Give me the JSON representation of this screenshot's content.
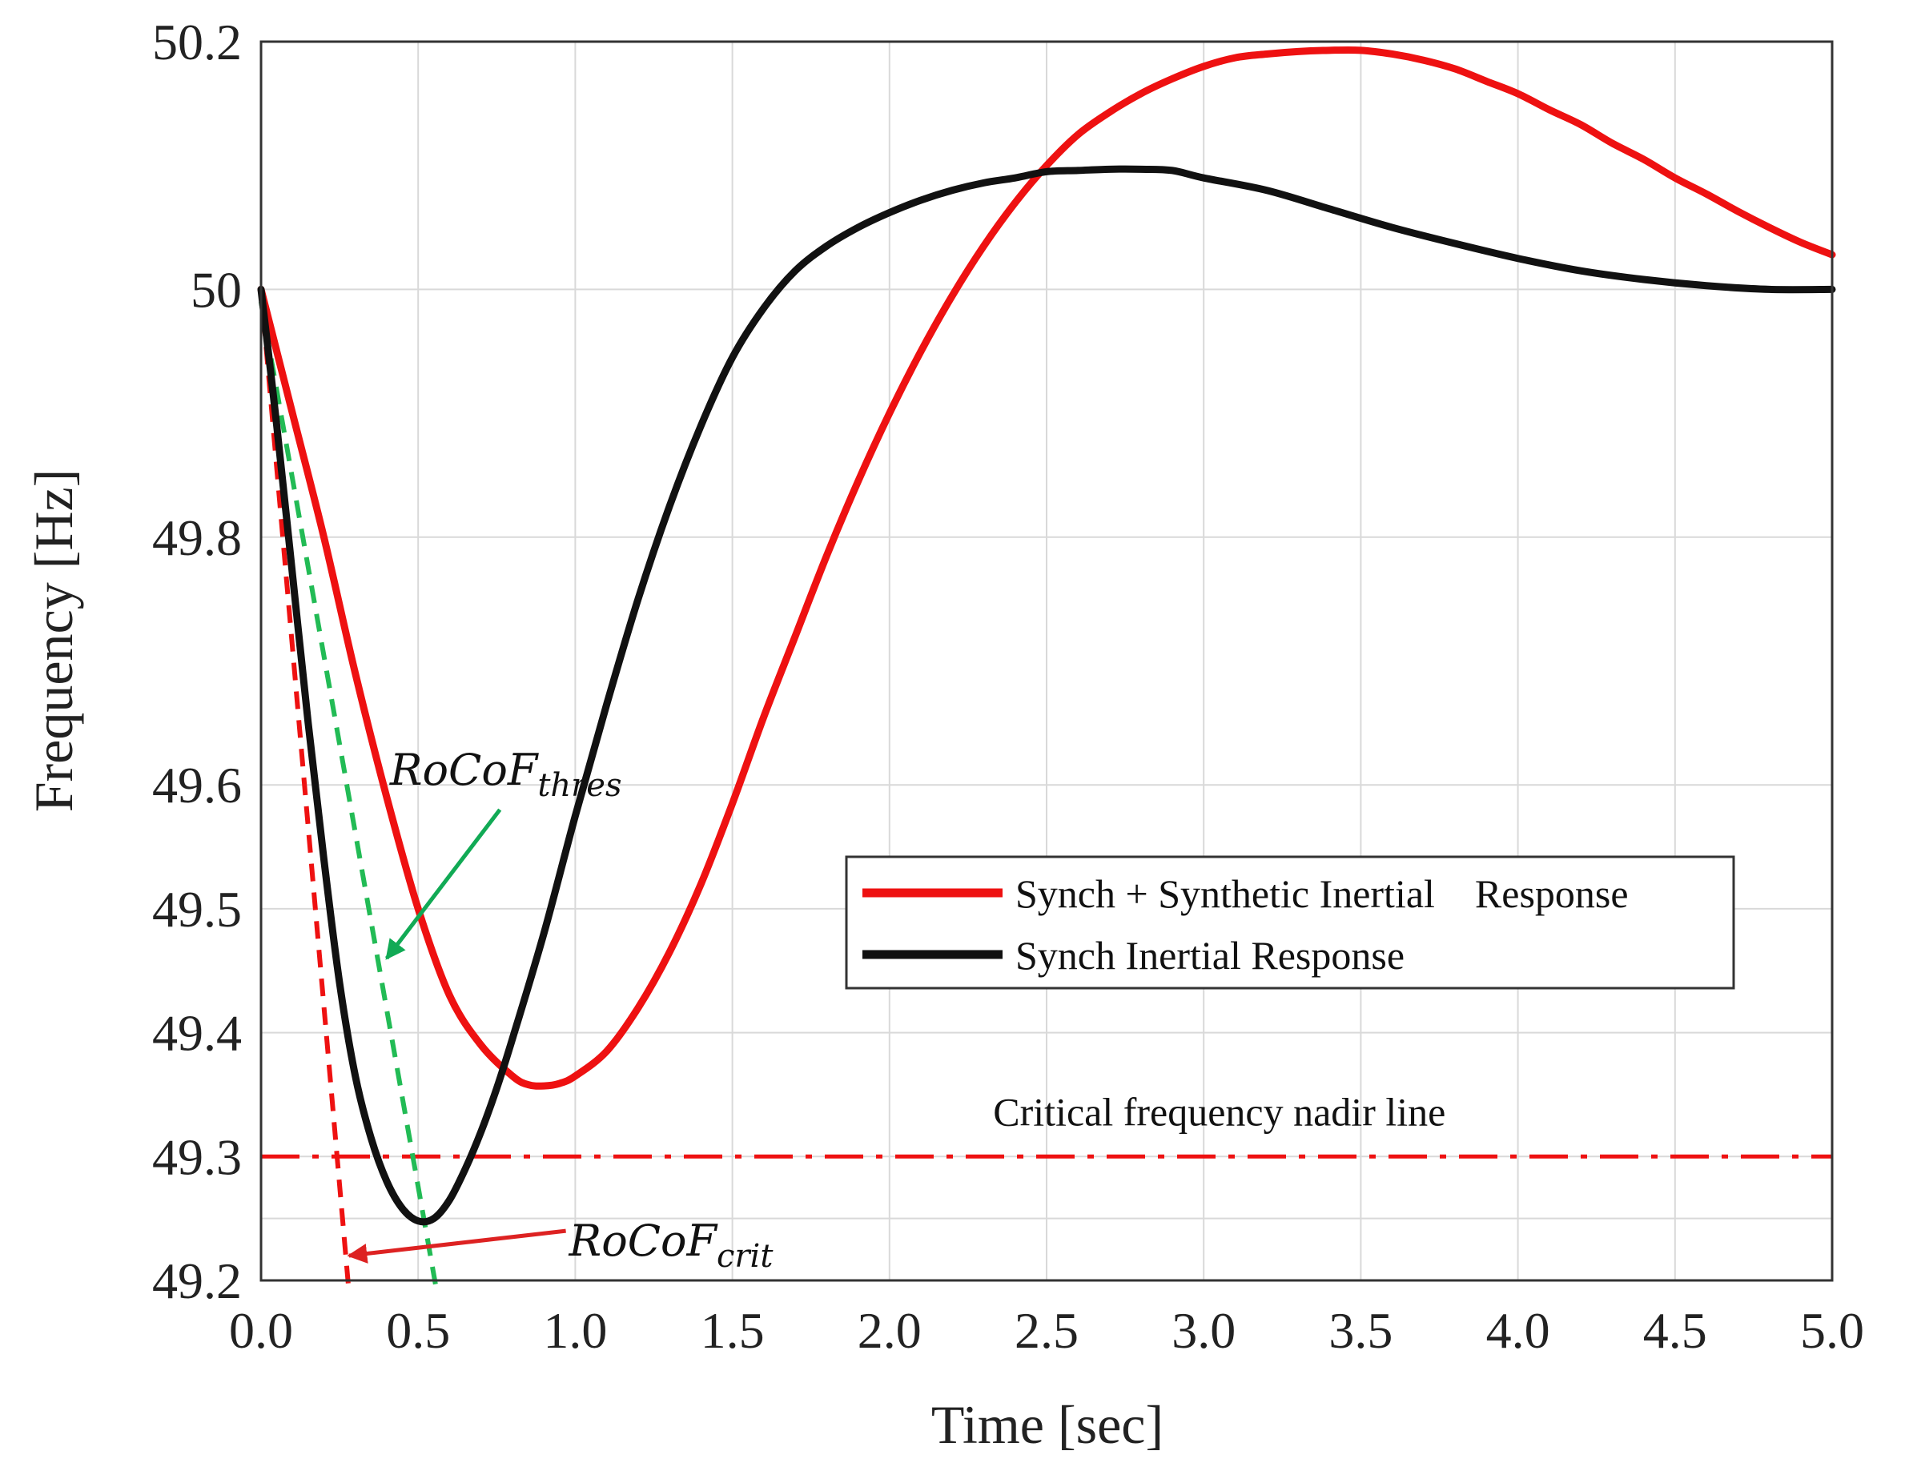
{
  "chart_data": {
    "type": "line",
    "title": "",
    "xlabel": "Time [sec]",
    "ylabel": "Frequency [Hz]",
    "xlim": [
      0,
      5
    ],
    "ylim": [
      49.2,
      50.2
    ],
    "grid": true,
    "x_ticks": [
      {
        "value": 0,
        "label": "0.0"
      },
      {
        "value": 0.5,
        "label": "0.5"
      },
      {
        "value": 1,
        "label": "1.0"
      },
      {
        "value": 1.5,
        "label": "1.5"
      },
      {
        "value": 2,
        "label": "2.0"
      },
      {
        "value": 2.5,
        "label": "2.5"
      },
      {
        "value": 3,
        "label": "3.0"
      },
      {
        "value": 3.5,
        "label": "3.5"
      },
      {
        "value": 4,
        "label": "4.0"
      },
      {
        "value": 4.5,
        "label": "4.5"
      },
      {
        "value": 5,
        "label": "5.0"
      }
    ],
    "y_ticks": [
      {
        "value": 49.2,
        "label": "49.2"
      },
      {
        "value": 49.3,
        "label": "49.3"
      },
      {
        "value": 49.4,
        "label": "49.4"
      },
      {
        "value": 49.5,
        "label": "49.5"
      },
      {
        "value": 49.6,
        "label": "49.6"
      },
      {
        "value": 49.8,
        "label": "49.8"
      },
      {
        "value": 50,
        "label": "50"
      },
      {
        "value": 50.2,
        "label": "50.2"
      }
    ],
    "extra_grid_y": [
      49.25
    ],
    "series": [
      {
        "name": "Synch + Synthetic Inertial    Response",
        "color": "#ee1111",
        "x": [
          0,
          0.1,
          0.2,
          0.3,
          0.4,
          0.5,
          0.6,
          0.7,
          0.8,
          0.85,
          0.9,
          0.95,
          1.0,
          1.1,
          1.2,
          1.3,
          1.4,
          1.5,
          1.6,
          1.7,
          1.8,
          1.9,
          2.0,
          2.1,
          2.2,
          2.3,
          2.4,
          2.5,
          2.6,
          2.7,
          2.8,
          2.9,
          3.0,
          3.1,
          3.2,
          3.3,
          3.4,
          3.5,
          3.6,
          3.7,
          3.8,
          3.9,
          4.0,
          4.1,
          4.2,
          4.3,
          4.4,
          4.5,
          4.6,
          4.7,
          4.8,
          4.9,
          5.0
        ],
        "y": [
          50.0,
          49.9,
          49.8,
          49.69,
          49.59,
          49.5,
          49.43,
          49.39,
          49.365,
          49.358,
          49.357,
          49.359,
          49.365,
          49.385,
          49.42,
          49.465,
          49.52,
          49.585,
          49.655,
          49.72,
          49.785,
          49.845,
          49.9,
          49.95,
          49.995,
          50.035,
          50.07,
          50.1,
          50.125,
          50.143,
          50.158,
          50.17,
          50.18,
          50.187,
          50.19,
          50.192,
          50.193,
          50.193,
          50.19,
          50.185,
          50.178,
          50.168,
          50.158,
          50.145,
          50.133,
          50.118,
          50.105,
          50.09,
          50.077,
          50.063,
          50.05,
          50.038,
          50.028
        ]
      },
      {
        "name": "Synch Inertial Response",
        "color": "#111111",
        "x": [
          0,
          0.05,
          0.1,
          0.15,
          0.2,
          0.25,
          0.3,
          0.35,
          0.4,
          0.45,
          0.5,
          0.55,
          0.6,
          0.65,
          0.7,
          0.75,
          0.8,
          0.9,
          1.0,
          1.1,
          1.2,
          1.3,
          1.4,
          1.5,
          1.6,
          1.7,
          1.8,
          1.9,
          2.0,
          2.1,
          2.2,
          2.3,
          2.4,
          2.5,
          2.6,
          2.7,
          2.8,
          2.9,
          3.0,
          3.2,
          3.4,
          3.6,
          3.8,
          4.0,
          4.2,
          4.4,
          4.6,
          4.8,
          5.0
        ],
        "y": [
          50.0,
          49.89,
          49.77,
          49.65,
          49.54,
          49.44,
          49.365,
          49.315,
          49.28,
          49.258,
          49.248,
          49.25,
          49.265,
          49.29,
          49.32,
          49.355,
          49.395,
          49.48,
          49.575,
          49.665,
          49.75,
          49.825,
          49.89,
          49.945,
          49.985,
          50.015,
          50.035,
          50.05,
          50.062,
          50.072,
          50.08,
          50.086,
          50.09,
          50.095,
          50.096,
          50.097,
          50.097,
          50.096,
          50.09,
          50.08,
          50.065,
          50.05,
          50.037,
          50.025,
          50.015,
          50.008,
          50.003,
          50.0,
          50.0
        ]
      }
    ],
    "reference_lines": [
      {
        "name": "Critical frequency nadir line",
        "y": 49.3,
        "color": "#ee1111",
        "style": "dash-dot"
      },
      {
        "name": "RoCoF crit slope",
        "from": [
          0,
          50.0
        ],
        "to": [
          0.28,
          49.19
        ],
        "color": "#ee1111",
        "style": "dashed"
      },
      {
        "name": "RoCoF thres slope",
        "from": [
          0,
          49.99
        ],
        "to": [
          0.56,
          49.19
        ],
        "color": "#22bb55",
        "style": "dashed"
      }
    ],
    "annotations": [
      {
        "kind": "math",
        "base": "RoCoF",
        "sub": "thres",
        "text_at": [
          0.41,
          49.6
        ],
        "arrow_from": [
          0.76,
          49.58
        ],
        "arrow_to": [
          0.4,
          49.46
        ],
        "arrow_color": "#11aa55"
      },
      {
        "kind": "math",
        "base": "RoCoF",
        "sub": "crit",
        "text_at": [
          0.98,
          49.22
        ],
        "arrow_from": [
          0.97,
          49.24
        ],
        "arrow_to": [
          0.28,
          49.22
        ],
        "arrow_color": "#dd2222"
      },
      {
        "kind": "text",
        "text": "Critical frequency nadir line",
        "text_at": [
          3.05,
          49.325
        ]
      }
    ],
    "legend": {
      "position": "center-right",
      "entries": [
        "Synch + Synthetic Inertial    Response",
        "Synch Inertial Response"
      ]
    }
  }
}
